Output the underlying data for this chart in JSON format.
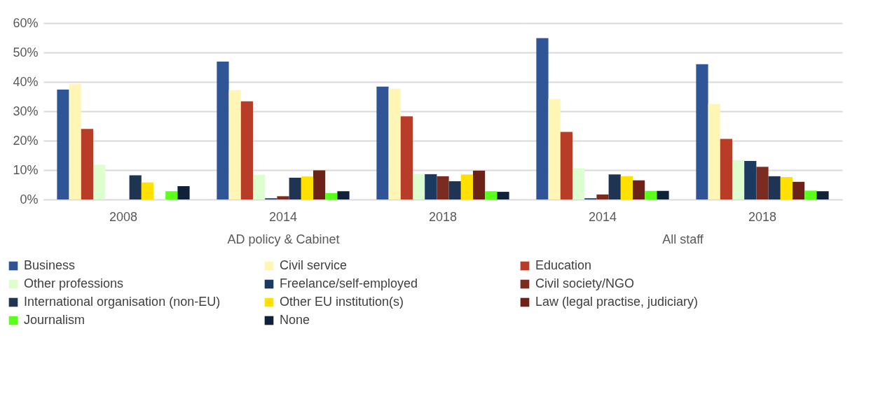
{
  "chart_data": [
    {
      "type": "bar",
      "xlabel": "AD policy & Cabinet",
      "categories": [
        "2008",
        "2014",
        "2018"
      ],
      "ylim": [
        0,
        60
      ],
      "yticks": [
        {
          "value": 0,
          "label": "0%"
        },
        {
          "value": 10,
          "label": "10%"
        },
        {
          "value": 20,
          "label": "20%"
        },
        {
          "value": 30,
          "label": "30%"
        },
        {
          "value": 40,
          "label": "40%"
        },
        {
          "value": 50,
          "label": "50%"
        },
        {
          "value": 60,
          "label": "60%"
        }
      ],
      "grid": "y",
      "legend": "bottom",
      "series": [
        {
          "name": "Business",
          "color": "#2f5597",
          "values": [
            37.4,
            46.9,
            38.4
          ]
        },
        {
          "name": "Civil service",
          "color": "#fff5b5",
          "values": [
            39.2,
            37.2,
            37.7
          ]
        },
        {
          "name": "Education",
          "color": "#b83c28",
          "values": [
            24,
            33.4,
            28.3
          ]
        },
        {
          "name": "Other professions",
          "color": "#ddffd0",
          "values": [
            11.8,
            8.4,
            8.7
          ]
        },
        {
          "name": "Freelance/self-employed",
          "color": "#1a3a60",
          "values": [
            null,
            0.4,
            8.6
          ]
        },
        {
          "name": "Civil society/NGO",
          "color": "#7b2c20",
          "values": [
            null,
            1.1,
            7.9
          ]
        },
        {
          "name": "International organisation (non-EU)",
          "color": "#1f3352",
          "values": [
            8.2,
            7.4,
            6.2
          ]
        },
        {
          "name": "Other EU institution(s)",
          "color": "#ffe000",
          "values": [
            5.8,
            7.8,
            8.5
          ]
        },
        {
          "name": "Law (legal practise, judiciary)",
          "color": "#6c2218",
          "values": [
            null,
            9.9,
            9.8
          ]
        },
        {
          "name": "Journalism",
          "color": "#5aff1a",
          "values": [
            2.8,
            2.2,
            2.8
          ]
        },
        {
          "name": "None",
          "color": "#10223a",
          "values": [
            4.5,
            2.8,
            2.6
          ]
        }
      ]
    },
    {
      "type": "bar",
      "xlabel": "All staff",
      "categories": [
        "2014",
        "2018"
      ],
      "tick_labels": "x",
      "ylim": [
        0,
        60
      ],
      "yticks": [
        0,
        10,
        20,
        30,
        40,
        50,
        60
      ],
      "grid": "y",
      "series": [
        {
          "color": "#2f5597",
          "values": [
            54.9,
            46
          ]
        },
        {
          "color": "#fff5b5",
          "values": [
            34.2,
            32.5
          ]
        },
        {
          "color": "#b83c28",
          "values": [
            23,
            20.6
          ]
        },
        {
          "color": "#ddffd0",
          "values": [
            10.6,
            13.4
          ]
        },
        {
          "color": "#1a3a60",
          "values": [
            0.4,
            13.1
          ]
        },
        {
          "color": "#7b2c20",
          "values": [
            1.7,
            11.1
          ]
        },
        {
          "color": "#1f3352",
          "values": [
            8.5,
            7.9
          ]
        },
        {
          "color": "#ffe000",
          "values": [
            7.9,
            7.6
          ]
        },
        {
          "color": "#6c2218",
          "values": [
            6.5,
            6
          ]
        },
        {
          "color": "#5aff1a",
          "values": [
            2.9,
            3
          ]
        },
        {
          "color": "#10223a",
          "values": [
            2.9,
            2.8
          ]
        }
      ]
    }
  ]
}
